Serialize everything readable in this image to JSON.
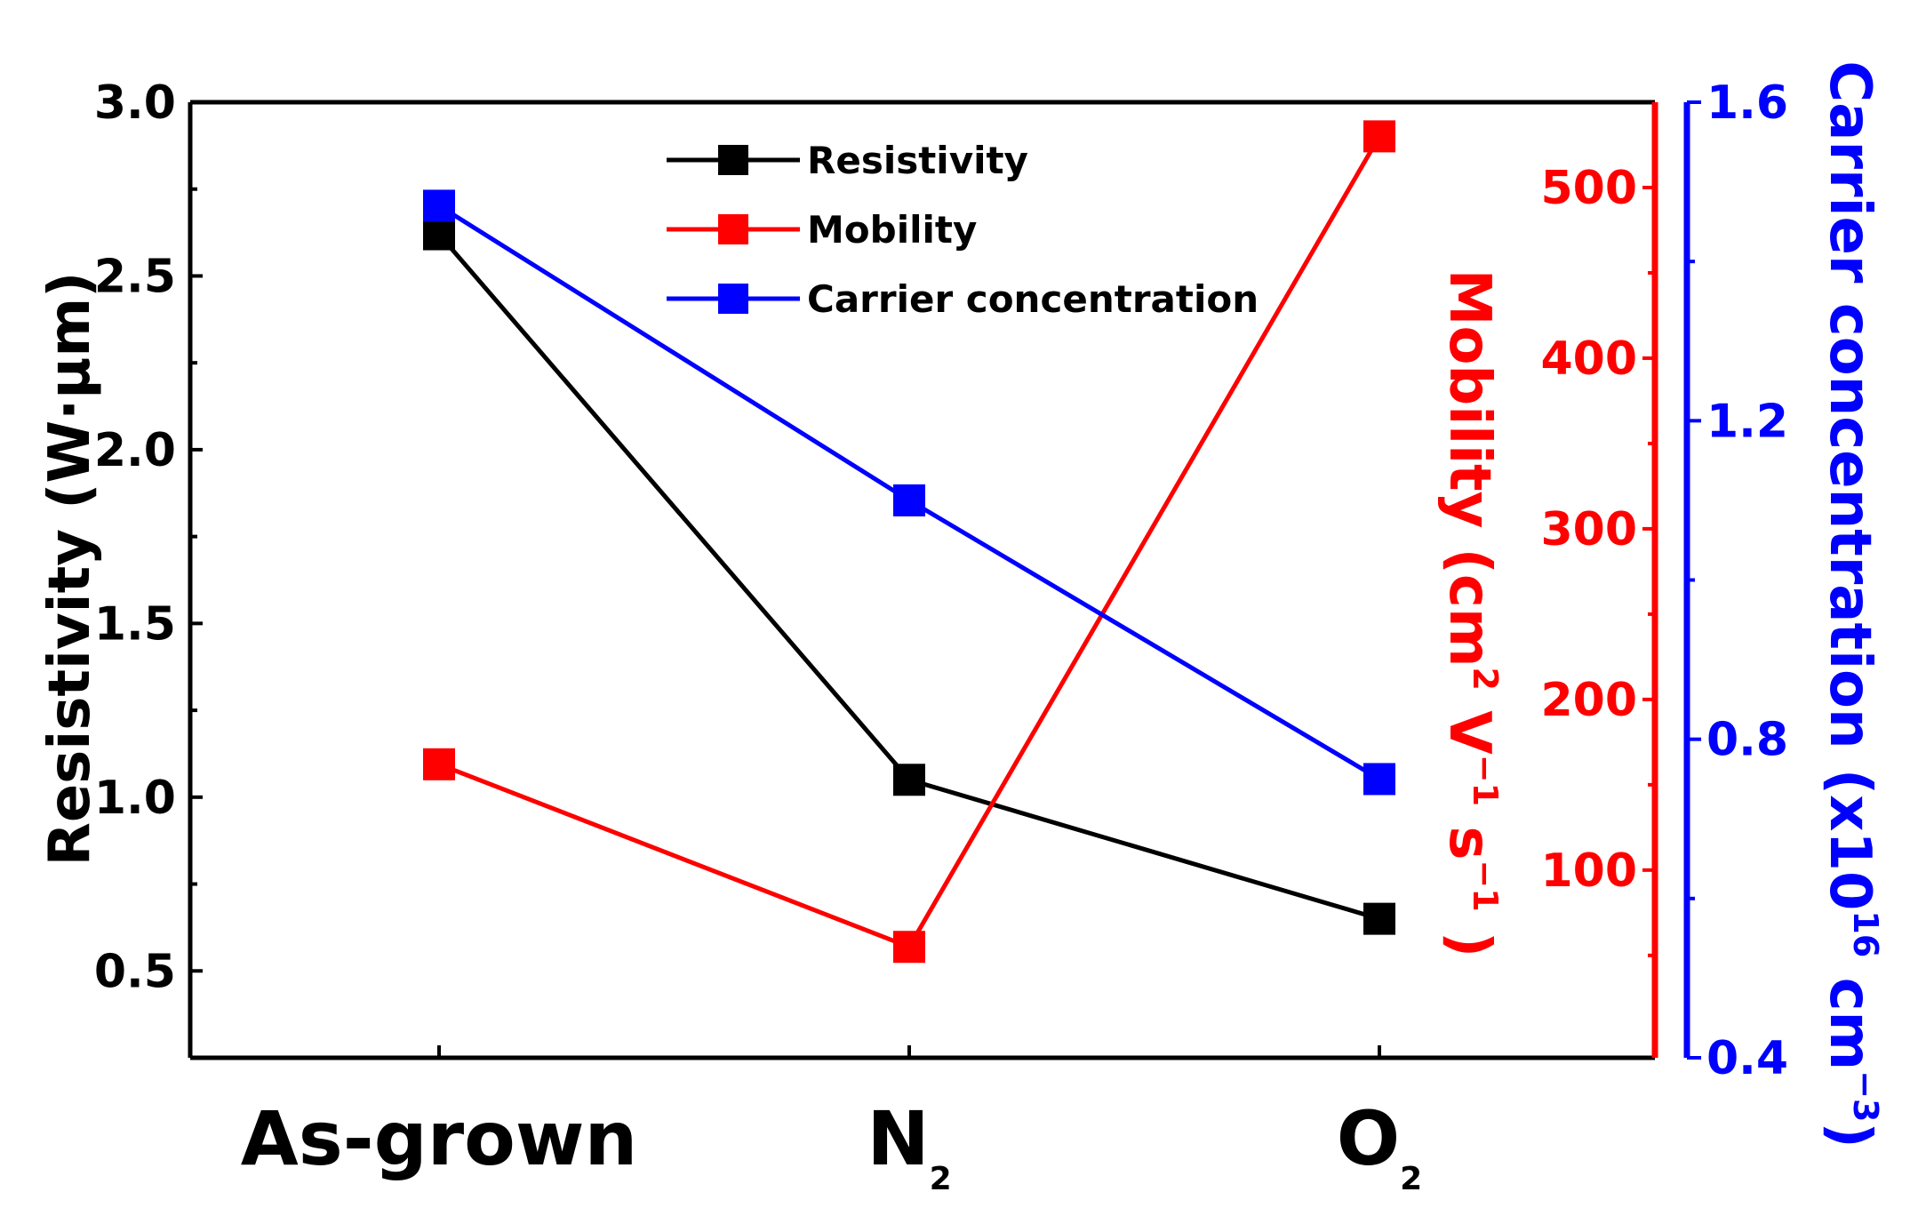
{
  "chart_data": {
    "type": "line",
    "categories": [
      "As-grown",
      "N2",
      "O2"
    ],
    "category_labels": [
      {
        "main": "As-grown",
        "sub": ""
      },
      {
        "main": "N",
        "sub": "2"
      },
      {
        "main": "O",
        "sub": "2"
      }
    ],
    "series": [
      {
        "name": "Resistivity",
        "axis": "left",
        "color": "#000000",
        "values": [
          2.62,
          1.05,
          0.65
        ]
      },
      {
        "name": "Mobility",
        "axis": "right1",
        "color": "#ff0000",
        "values": [
          162,
          55,
          530
        ]
      },
      {
        "name": "Carrier concentration",
        "axis": "right2",
        "color": "#0000ff",
        "values": [
          1.47,
          1.1,
          0.75
        ]
      }
    ],
    "axes": {
      "left": {
        "title_parts": [
          "Resistivity (W·µm",
          ")"
        ],
        "ylim": [
          0.25,
          3.0
        ],
        "ticks": [
          3.0,
          2.5,
          2.0,
          1.5,
          1.0,
          0.5
        ],
        "tick_labels": [
          "3.0",
          "2.5",
          "2.0",
          "1.5",
          "1.0",
          "0.5"
        ],
        "color": "#000000"
      },
      "right1": {
        "title_parts": [
          "Mobility (cm",
          "2",
          "V",
          "−1",
          "s",
          "−1",
          ")"
        ],
        "ylim": [
          -10,
          550
        ],
        "ticks": [
          500,
          400,
          300,
          200,
          100
        ],
        "tick_labels": [
          "500",
          "400",
          "300",
          "200",
          "100"
        ],
        "color": "#ff0000"
      },
      "right2": {
        "title_parts": [
          "Carrier concentration (x10",
          "16",
          " cm",
          "−3",
          ")"
        ],
        "ylim": [
          0.4,
          1.6
        ],
        "ticks": [
          1.6,
          1.2,
          0.8,
          0.4
        ],
        "tick_labels": [
          "1.6",
          "1.2",
          "0.8",
          "0.4"
        ],
        "color": "#0000ff"
      }
    },
    "legend": {
      "position": "top-center",
      "entries": [
        "Resistivity",
        "Mobility",
        "Carrier concentration"
      ]
    },
    "grid": false
  }
}
